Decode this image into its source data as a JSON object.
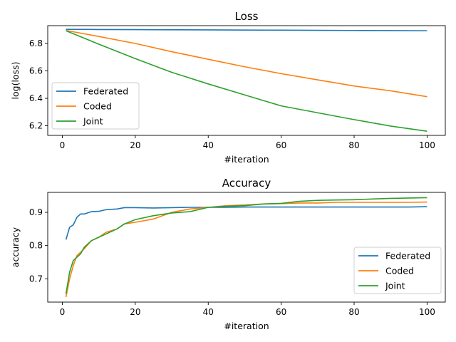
{
  "chart_data": [
    {
      "type": "line",
      "title": "Loss",
      "xlabel": "#iteration",
      "ylabel": "log(loss)",
      "xlim": [
        -4,
        105
      ],
      "ylim": [
        6.13,
        6.93
      ],
      "xticks": [
        0,
        20,
        40,
        60,
        80,
        100
      ],
      "yticks": [
        6.2,
        6.4,
        6.6,
        6.8
      ],
      "legend_position": "lower-left",
      "grid": false,
      "x": [
        1,
        10,
        20,
        30,
        40,
        50,
        60,
        70,
        80,
        90,
        100
      ],
      "series": [
        {
          "name": "Federated",
          "color": "#1f77b4",
          "values": [
            6.903,
            6.902,
            6.901,
            6.9,
            6.899,
            6.898,
            6.897,
            6.896,
            6.895,
            6.894,
            6.893
          ]
        },
        {
          "name": "Coded",
          "color": "#ff7f0e",
          "values": [
            6.895,
            6.851,
            6.8,
            6.74,
            6.685,
            6.63,
            6.58,
            6.535,
            6.49,
            6.455,
            6.412
          ]
        },
        {
          "name": "Joint",
          "color": "#2ca02c",
          "values": [
            6.893,
            6.795,
            6.69,
            6.59,
            6.505,
            6.425,
            6.345,
            6.295,
            6.245,
            6.198,
            6.16
          ]
        }
      ]
    },
    {
      "type": "line",
      "title": "Accuracy",
      "xlabel": "#iteration",
      "ylabel": "accuracy",
      "xlim": [
        -4,
        105
      ],
      "ylim": [
        0.63,
        0.96
      ],
      "xticks": [
        0,
        20,
        40,
        60,
        80,
        100
      ],
      "yticks": [
        0.7,
        0.8,
        0.9
      ],
      "legend_position": "lower-right",
      "grid": false,
      "x": [
        1,
        2,
        3,
        4,
        5,
        6,
        8,
        10,
        12,
        15,
        17,
        20,
        25,
        30,
        35,
        40,
        45,
        50,
        55,
        60,
        65,
        70,
        75,
        80,
        85,
        90,
        95,
        100
      ],
      "series": [
        {
          "name": "Federated",
          "color": "#1f77b4",
          "values": [
            0.818,
            0.855,
            0.862,
            0.885,
            0.895,
            0.895,
            0.902,
            0.903,
            0.908,
            0.91,
            0.914,
            0.914,
            0.913,
            0.914,
            0.915,
            0.915,
            0.915,
            0.916,
            0.916,
            0.916,
            0.916,
            0.916,
            0.916,
            0.916,
            0.916,
            0.916,
            0.916,
            0.917
          ]
        },
        {
          "name": "Coded",
          "color": "#ff7f0e",
          "values": [
            0.645,
            0.7,
            0.74,
            0.77,
            0.78,
            0.79,
            0.815,
            0.825,
            0.84,
            0.85,
            0.865,
            0.87,
            0.88,
            0.9,
            0.91,
            0.915,
            0.92,
            0.922,
            0.925,
            0.926,
            0.928,
            0.928,
            0.93,
            0.93,
            0.93,
            0.93,
            0.93,
            0.931
          ]
        },
        {
          "name": "Joint",
          "color": "#2ca02c",
          "values": [
            0.655,
            0.72,
            0.755,
            0.765,
            0.775,
            0.795,
            0.815,
            0.825,
            0.835,
            0.85,
            0.865,
            0.878,
            0.89,
            0.898,
            0.902,
            0.915,
            0.918,
            0.92,
            0.925,
            0.927,
            0.933,
            0.936,
            0.937,
            0.938,
            0.94,
            0.942,
            0.943,
            0.944
          ]
        }
      ]
    }
  ]
}
